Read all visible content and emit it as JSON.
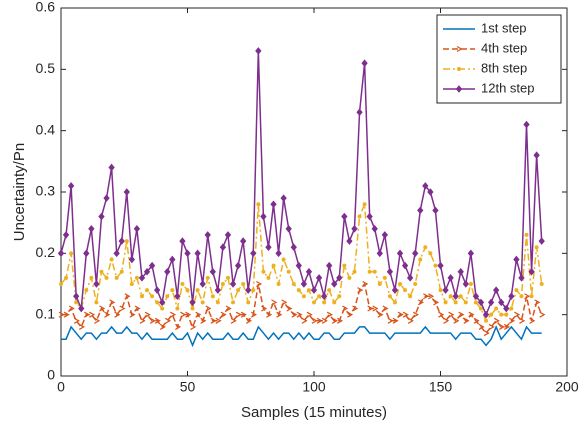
{
  "chart_data": {
    "type": "line",
    "xlabel": "Samples (15 minutes)",
    "ylabel": "Uncertainty/Pn",
    "xlim": [
      0,
      200
    ],
    "xticks": [
      0,
      50,
      100,
      150,
      200
    ],
    "ylim": [
      0,
      0.6
    ],
    "yticks": [
      0,
      0.1,
      0.2,
      0.3,
      0.4,
      0.5,
      0.6
    ],
    "legend": "upper-right",
    "x": [
      0,
      2,
      4,
      6,
      8,
      10,
      12,
      14,
      16,
      18,
      20,
      22,
      24,
      26,
      28,
      30,
      32,
      34,
      36,
      38,
      40,
      42,
      44,
      46,
      48,
      50,
      52,
      54,
      56,
      58,
      60,
      62,
      64,
      66,
      68,
      70,
      72,
      74,
      76,
      78,
      80,
      82,
      84,
      86,
      88,
      90,
      92,
      94,
      96,
      98,
      100,
      102,
      104,
      106,
      108,
      110,
      112,
      114,
      116,
      118,
      120,
      122,
      124,
      126,
      128,
      130,
      132,
      134,
      136,
      138,
      140,
      142,
      144,
      146,
      148,
      150,
      152,
      154,
      156,
      158,
      160,
      162,
      164,
      166,
      168,
      170,
      172,
      174,
      176,
      178,
      180,
      182,
      184,
      186,
      188,
      190
    ],
    "series": [
      {
        "name": "1st step",
        "color": "#0072bd",
        "dash": "solid",
        "marker": "none",
        "values": [
          0.06,
          0.06,
          0.08,
          0.07,
          0.06,
          0.07,
          0.07,
          0.06,
          0.07,
          0.07,
          0.08,
          0.07,
          0.07,
          0.08,
          0.07,
          0.07,
          0.06,
          0.07,
          0.06,
          0.06,
          0.06,
          0.06,
          0.07,
          0.06,
          0.06,
          0.07,
          0.05,
          0.07,
          0.06,
          0.07,
          0.06,
          0.06,
          0.06,
          0.07,
          0.06,
          0.06,
          0.07,
          0.06,
          0.06,
          0.08,
          0.07,
          0.06,
          0.07,
          0.06,
          0.07,
          0.07,
          0.06,
          0.07,
          0.06,
          0.07,
          0.06,
          0.06,
          0.07,
          0.07,
          0.06,
          0.06,
          0.07,
          0.07,
          0.07,
          0.08,
          0.08,
          0.07,
          0.07,
          0.07,
          0.07,
          0.06,
          0.07,
          0.07,
          0.07,
          0.07,
          0.07,
          0.07,
          0.08,
          0.07,
          0.07,
          0.07,
          0.07,
          0.07,
          0.06,
          0.07,
          0.07,
          0.07,
          0.06,
          0.06,
          0.05,
          0.06,
          0.08,
          0.06,
          0.07,
          0.08,
          0.07,
          0.06,
          0.08,
          0.07,
          0.07,
          0.07
        ]
      },
      {
        "name": "4th step",
        "color": "#d95319",
        "dash": "dashed",
        "marker": "triangle",
        "values": [
          0.1,
          0.1,
          0.11,
          0.09,
          0.08,
          0.1,
          0.1,
          0.09,
          0.11,
          0.1,
          0.12,
          0.1,
          0.11,
          0.13,
          0.1,
          0.11,
          0.09,
          0.1,
          0.09,
          0.09,
          0.08,
          0.09,
          0.1,
          0.08,
          0.1,
          0.1,
          0.08,
          0.1,
          0.09,
          0.11,
          0.09,
          0.09,
          0.1,
          0.11,
          0.09,
          0.1,
          0.1,
          0.09,
          0.1,
          0.15,
          0.11,
          0.1,
          0.12,
          0.1,
          0.12,
          0.11,
          0.1,
          0.1,
          0.09,
          0.1,
          0.09,
          0.09,
          0.09,
          0.1,
          0.09,
          0.09,
          0.11,
          0.1,
          0.11,
          0.14,
          0.15,
          0.11,
          0.11,
          0.1,
          0.11,
          0.09,
          0.09,
          0.1,
          0.1,
          0.09,
          0.1,
          0.12,
          0.13,
          0.13,
          0.12,
          0.1,
          0.09,
          0.1,
          0.09,
          0.1,
          0.09,
          0.1,
          0.09,
          0.08,
          0.07,
          0.08,
          0.09,
          0.08,
          0.08,
          0.09,
          0.1,
          0.09,
          0.13,
          0.09,
          0.12,
          0.1
        ]
      },
      {
        "name": "8th step",
        "color": "#edb120",
        "dash": "dashdot",
        "marker": "circle",
        "values": [
          0.15,
          0.16,
          0.2,
          0.12,
          0.11,
          0.14,
          0.16,
          0.12,
          0.17,
          0.16,
          0.19,
          0.16,
          0.17,
          0.22,
          0.15,
          0.16,
          0.13,
          0.14,
          0.13,
          0.12,
          0.11,
          0.13,
          0.14,
          0.11,
          0.15,
          0.14,
          0.11,
          0.14,
          0.12,
          0.16,
          0.13,
          0.12,
          0.15,
          0.16,
          0.12,
          0.14,
          0.15,
          0.12,
          0.14,
          0.28,
          0.17,
          0.16,
          0.18,
          0.15,
          0.19,
          0.17,
          0.15,
          0.14,
          0.13,
          0.14,
          0.12,
          0.13,
          0.12,
          0.14,
          0.12,
          0.13,
          0.18,
          0.16,
          0.17,
          0.26,
          0.28,
          0.17,
          0.17,
          0.15,
          0.16,
          0.13,
          0.12,
          0.15,
          0.14,
          0.13,
          0.15,
          0.19,
          0.21,
          0.2,
          0.18,
          0.14,
          0.12,
          0.13,
          0.12,
          0.13,
          0.12,
          0.15,
          0.12,
          0.11,
          0.09,
          0.1,
          0.11,
          0.1,
          0.1,
          0.11,
          0.14,
          0.13,
          0.23,
          0.13,
          0.21,
          0.15
        ]
      },
      {
        "name": "12th step",
        "color": "#7e2f8e",
        "dash": "solid",
        "marker": "diamond",
        "values": [
          0.2,
          0.23,
          0.31,
          0.13,
          0.11,
          0.2,
          0.24,
          0.15,
          0.26,
          0.29,
          0.34,
          0.2,
          0.22,
          0.3,
          0.19,
          0.24,
          0.16,
          0.17,
          0.18,
          0.14,
          0.12,
          0.17,
          0.19,
          0.13,
          0.22,
          0.2,
          0.12,
          0.2,
          0.15,
          0.23,
          0.17,
          0.14,
          0.21,
          0.23,
          0.15,
          0.18,
          0.22,
          0.14,
          0.2,
          0.53,
          0.26,
          0.21,
          0.28,
          0.2,
          0.29,
          0.24,
          0.21,
          0.18,
          0.15,
          0.17,
          0.14,
          0.16,
          0.13,
          0.18,
          0.15,
          0.16,
          0.26,
          0.22,
          0.24,
          0.43,
          0.51,
          0.26,
          0.24,
          0.2,
          0.23,
          0.17,
          0.14,
          0.2,
          0.18,
          0.16,
          0.2,
          0.27,
          0.31,
          0.3,
          0.27,
          0.18,
          0.14,
          0.16,
          0.13,
          0.17,
          0.15,
          0.2,
          0.13,
          0.12,
          0.1,
          0.12,
          0.14,
          0.12,
          0.11,
          0.13,
          0.19,
          0.16,
          0.41,
          0.17,
          0.36,
          0.22
        ]
      }
    ]
  }
}
